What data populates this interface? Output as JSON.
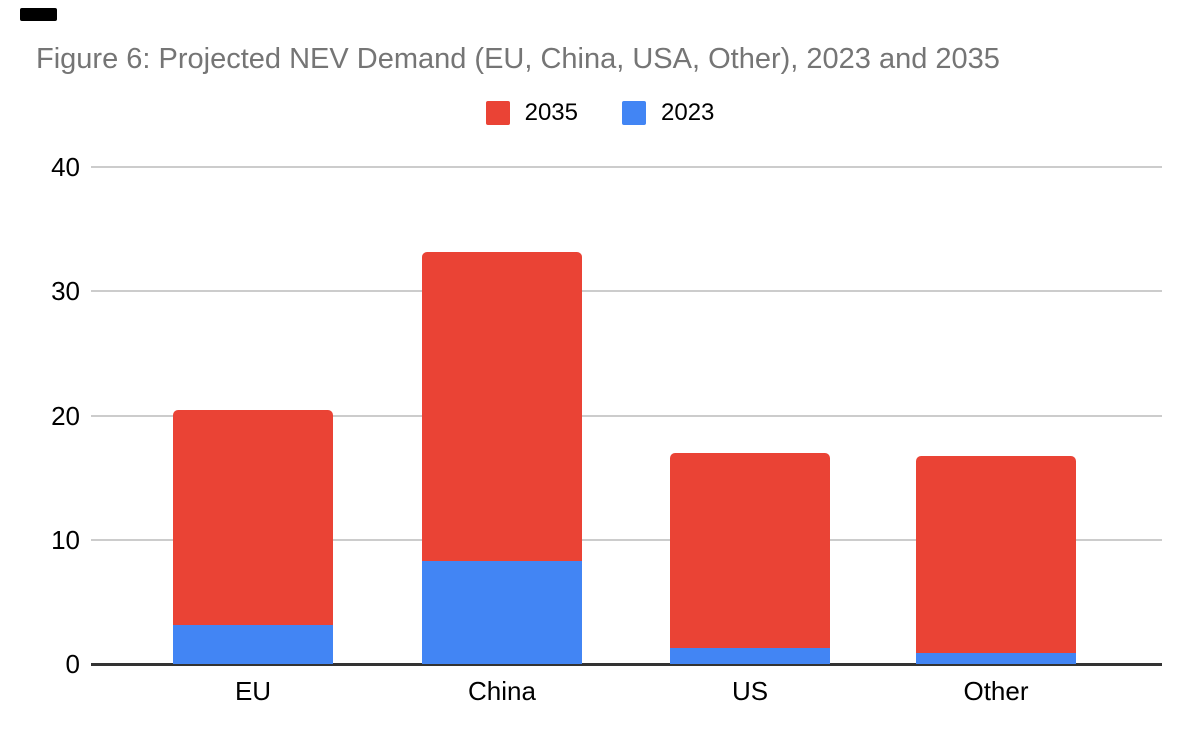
{
  "chart_data": {
    "type": "bar",
    "stacked": true,
    "title": "Figure 6: Projected NEV Demand (EU, China, USA, Other), 2023 and 2035",
    "categories": [
      "EU",
      "China",
      "US",
      "Other"
    ],
    "series": [
      {
        "name": "2023",
        "color": "#4285F4",
        "values": [
          3.1,
          8.3,
          1.3,
          0.9
        ]
      },
      {
        "name": "2035",
        "color": "#EA4335",
        "values": [
          17.3,
          24.9,
          15.7,
          15.9
        ]
      }
    ],
    "stack_totals": [
      20.4,
      33.2,
      17.0,
      16.8
    ],
    "legend_items": [
      {
        "label": "2035",
        "color": "#EA4335"
      },
      {
        "label": "2023",
        "color": "#4285F4"
      }
    ],
    "legend_position": "top",
    "y_ticks": [
      0,
      10,
      20,
      30,
      40
    ],
    "ylim": [
      0,
      40
    ],
    "xlabel": "",
    "ylabel": "",
    "grid": "horizontal",
    "colors": {
      "grid_line": "#cccccc",
      "axis_line": "#333333",
      "title_text": "#757575",
      "tick_text": "#000000",
      "background": "#ffffff"
    }
  }
}
